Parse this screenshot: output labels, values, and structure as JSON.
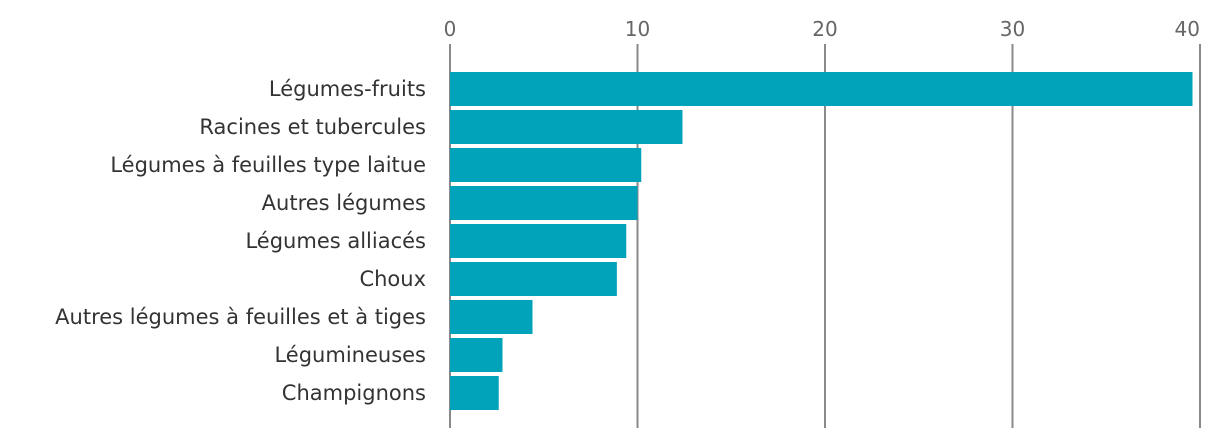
{
  "chart_data": {
    "type": "bar",
    "orientation": "horizontal",
    "categories": [
      "Légumes-fruits",
      "Racines et tubercules",
      "Légumes à feuilles type laitue",
      "Autres légumes",
      "Légumes alliacés",
      "Choux",
      "Autres légumes à feuilles et à tiges",
      "Légumineuses",
      "Champignons"
    ],
    "values": [
      39.6,
      12.4,
      10.2,
      10.0,
      9.4,
      8.9,
      4.4,
      2.8,
      2.6
    ],
    "xlim": [
      0,
      40
    ],
    "xticks": [
      0,
      10,
      20,
      30,
      40
    ],
    "axis_position": "top",
    "grid": "vertical",
    "bar_color": "#00a3b9",
    "grid_color": "#8a8a8a",
    "title": "",
    "xlabel": "",
    "ylabel": ""
  }
}
